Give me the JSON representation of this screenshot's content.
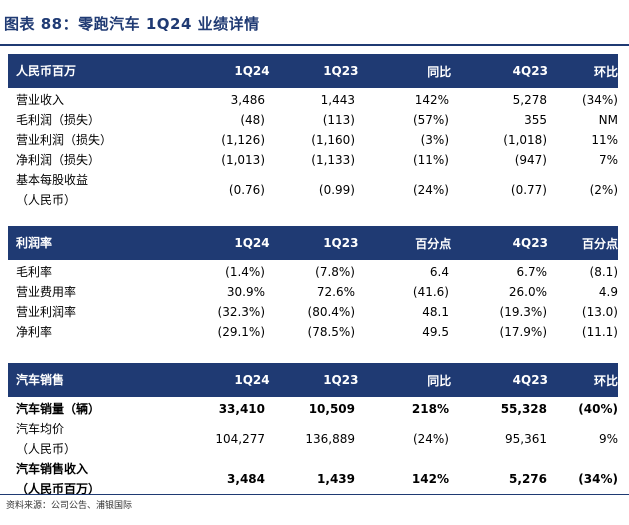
{
  "title": "图表 88：零跑汽车 1Q24 业绩详情",
  "sections": [
    {
      "header": [
        "人民币百万",
        "1Q24",
        "1Q23",
        "同比",
        "4Q23",
        "环比"
      ],
      "rows": [
        {
          "label": [
            "营业收入"
          ],
          "values": [
            "3,486",
            "1,443",
            "142%",
            "5,278",
            "(34%)"
          ]
        },
        {
          "label": [
            "毛利润（损失）"
          ],
          "values": [
            "(48)",
            "(113)",
            "(57%)",
            "355",
            "NM"
          ]
        },
        {
          "label": [
            "营业利润（损失）"
          ],
          "values": [
            "(1,126)",
            "(1,160)",
            "(3%)",
            "(1,018)",
            "11%"
          ]
        },
        {
          "label": [
            "净利润（损失）"
          ],
          "values": [
            "(1,013)",
            "(1,133)",
            "(11%)",
            "(947)",
            "7%"
          ]
        },
        {
          "label": [
            "基本每股收益",
            "（人民币）"
          ],
          "values": [
            "(0.76)",
            "(0.99)",
            "(24%)",
            "(0.77)",
            "(2%)"
          ]
        }
      ]
    },
    {
      "header": [
        "利润率",
        "1Q24",
        "1Q23",
        "百分点",
        "4Q23",
        "百分点"
      ],
      "rows": [
        {
          "label": [
            "毛利率"
          ],
          "values": [
            "(1.4%)",
            "(7.8%)",
            "6.4",
            "6.7%",
            "(8.1)"
          ]
        },
        {
          "label": [
            "营业费用率"
          ],
          "values": [
            "30.9%",
            "72.6%",
            "(41.6)",
            "26.0%",
            "4.9"
          ]
        },
        {
          "label": [
            "营业利润率"
          ],
          "values": [
            "(32.3%)",
            "(80.4%)",
            "48.1",
            "(19.3%)",
            "(13.0)"
          ]
        },
        {
          "label": [
            "净利率"
          ],
          "values": [
            "(29.1%)",
            "(78.5%)",
            "49.5",
            "(17.9%)",
            "(11.1)"
          ]
        }
      ]
    },
    {
      "header": [
        "汽车销售",
        "1Q24",
        "1Q23",
        "同比",
        "4Q23",
        "环比"
      ],
      "rows": [
        {
          "label": [
            "汽车销量（辆）"
          ],
          "bold": true,
          "values": [
            "33,410",
            "10,509",
            "218%",
            "55,328",
            "(40%)"
          ]
        },
        {
          "label": [
            "汽车均价",
            "（人民币）"
          ],
          "values": [
            "104,277",
            "136,889",
            "(24%)",
            "95,361",
            "9%"
          ]
        },
        {
          "label": [
            "汽车销售收入",
            "（人民币百万）"
          ],
          "bold": true,
          "values": [
            "3,484",
            "1,439",
            "142%",
            "5,276",
            "(34%)"
          ]
        }
      ]
    }
  ],
  "source": "资料来源：公司公告、浦银国际"
}
